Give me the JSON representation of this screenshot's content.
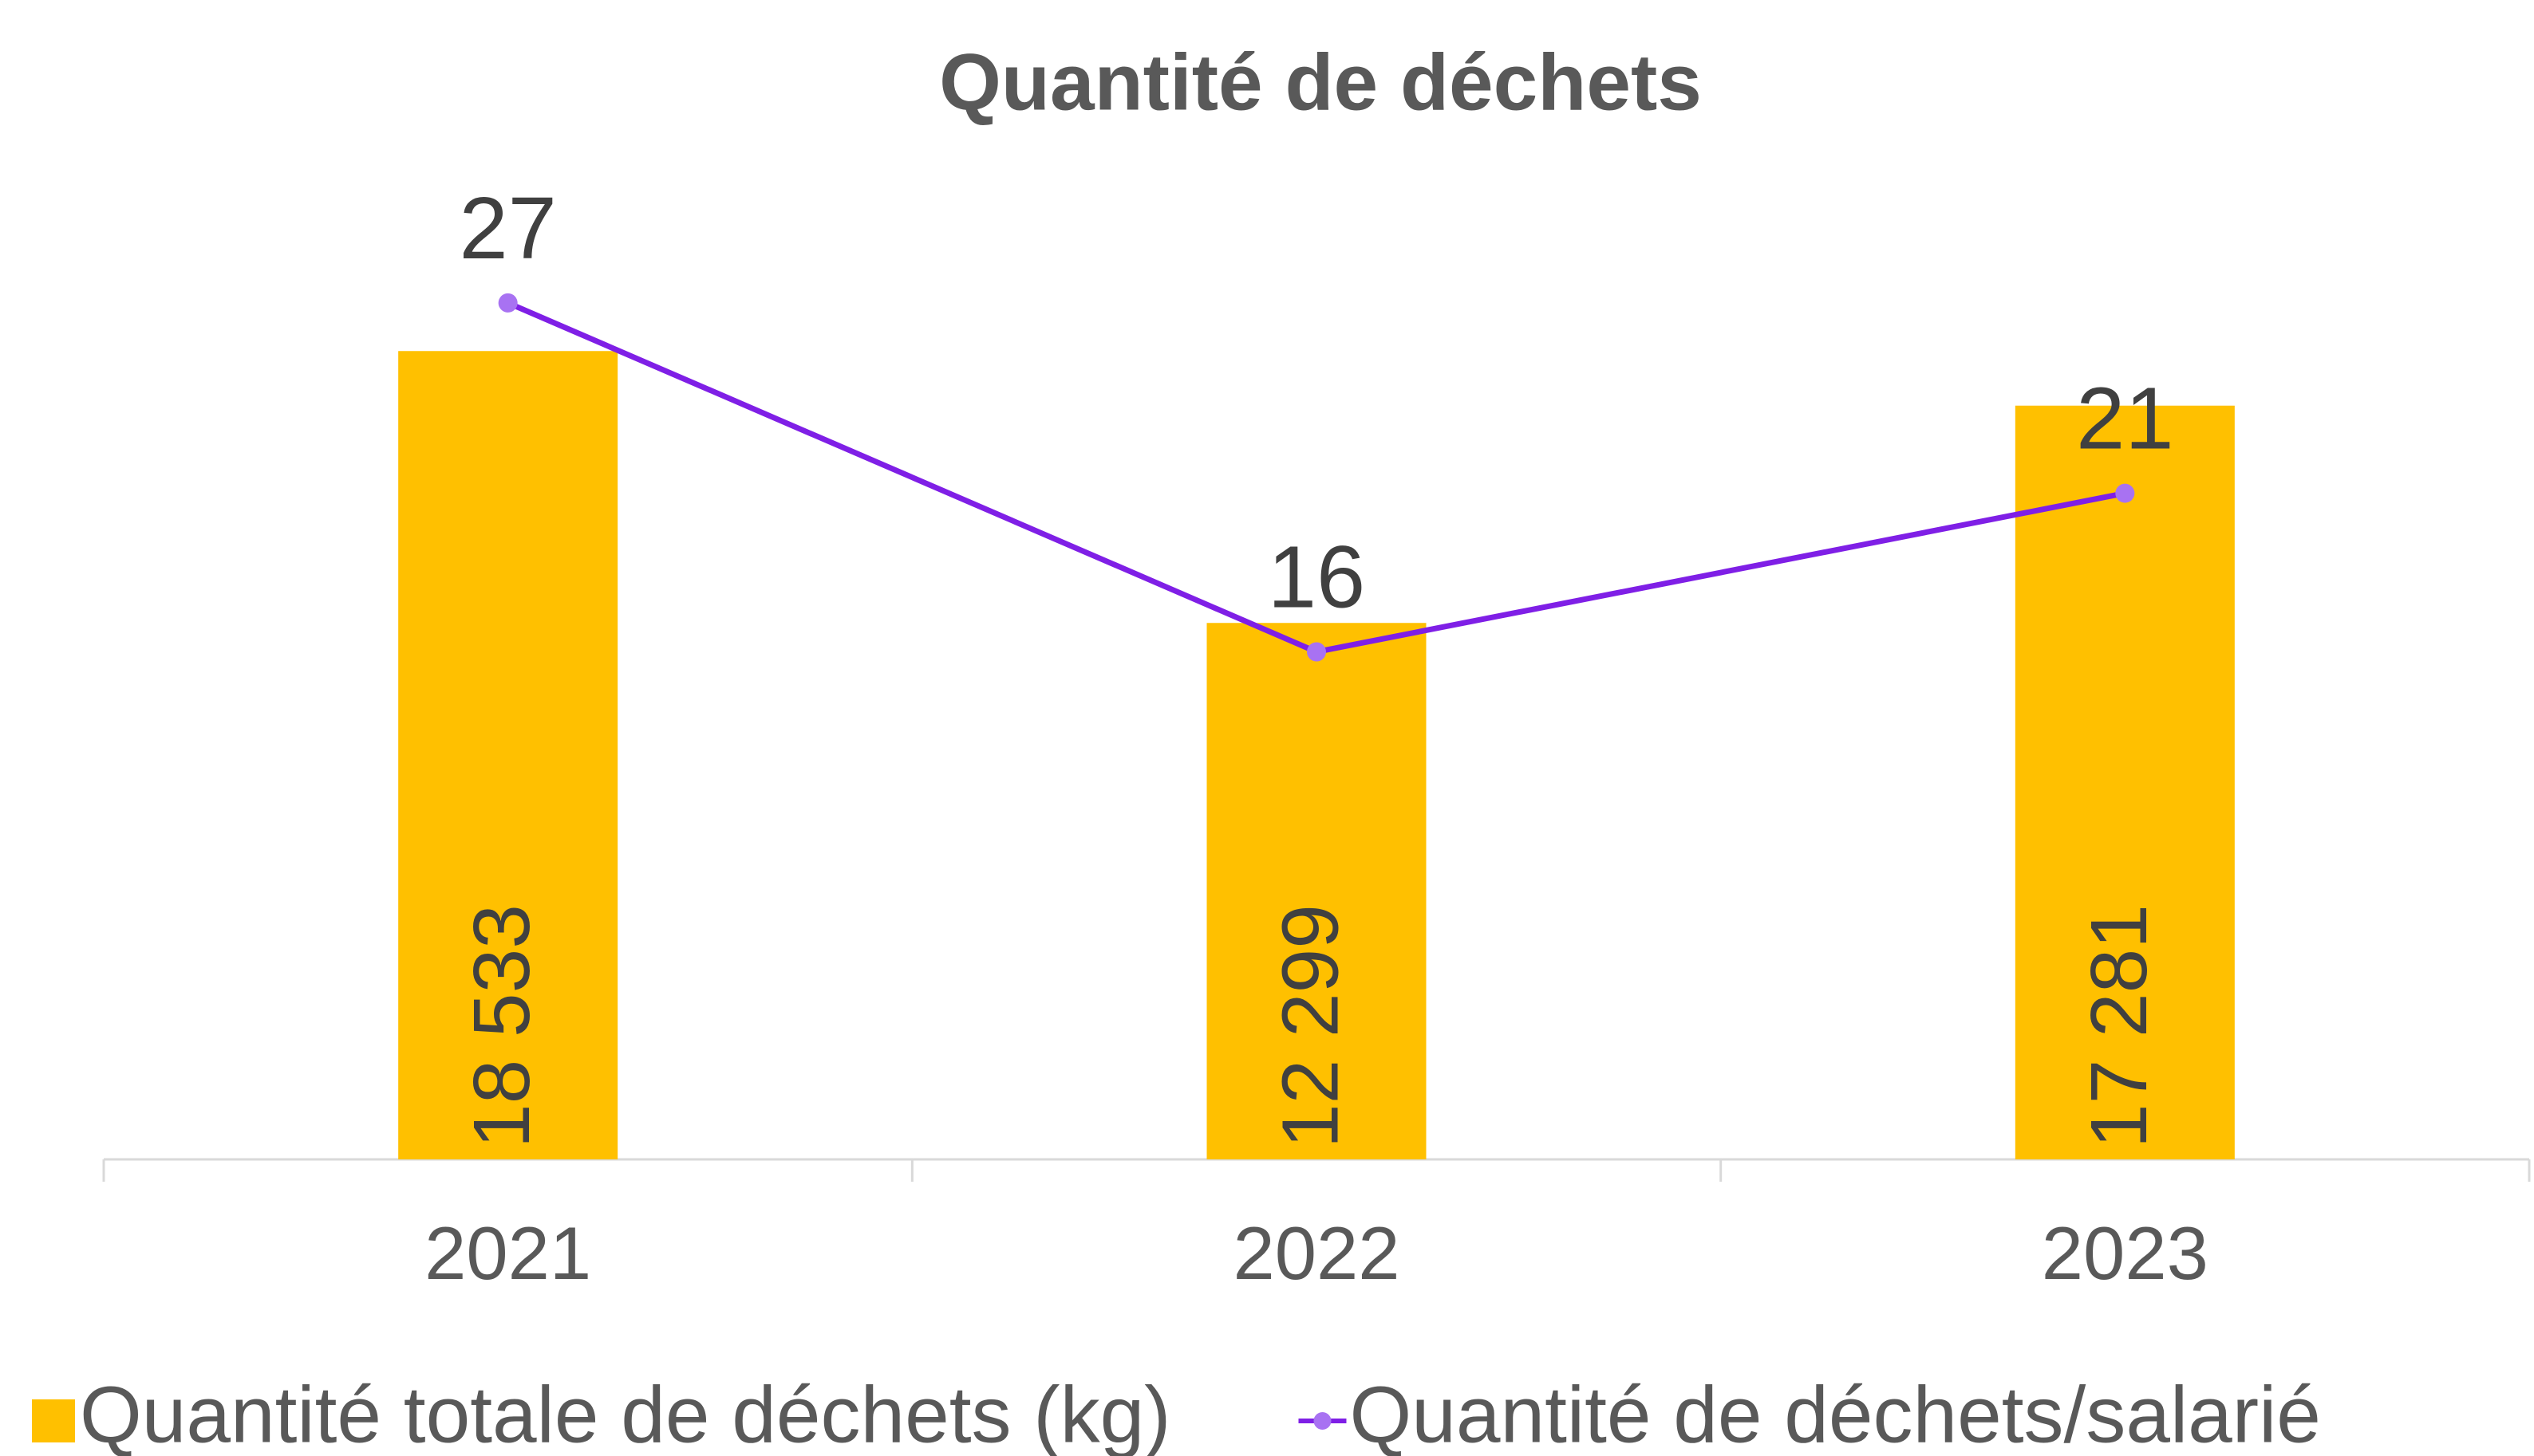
{
  "chart_data": {
    "type": "bar",
    "title": "Quantité de déchets",
    "categories": [
      "2021",
      "2022",
      "2023"
    ],
    "series": [
      {
        "name": "Quantité totale de déchets (kg)",
        "type": "bar",
        "color": "#FFC000",
        "values": [
          18533,
          12299,
          17281
        ],
        "value_labels": [
          "18 533",
          "12 299",
          "17 281"
        ]
      },
      {
        "name": "Quantité de déchets/salarié",
        "type": "line",
        "axis": "y2",
        "color": "#7F1FE6",
        "marker_color": "#A872F2",
        "values": [
          27,
          16,
          21
        ]
      }
    ],
    "ylim": [
      0,
      20000
    ],
    "y2lim": [
      0,
      27.5
    ],
    "grid": false,
    "legend": "bottom"
  }
}
